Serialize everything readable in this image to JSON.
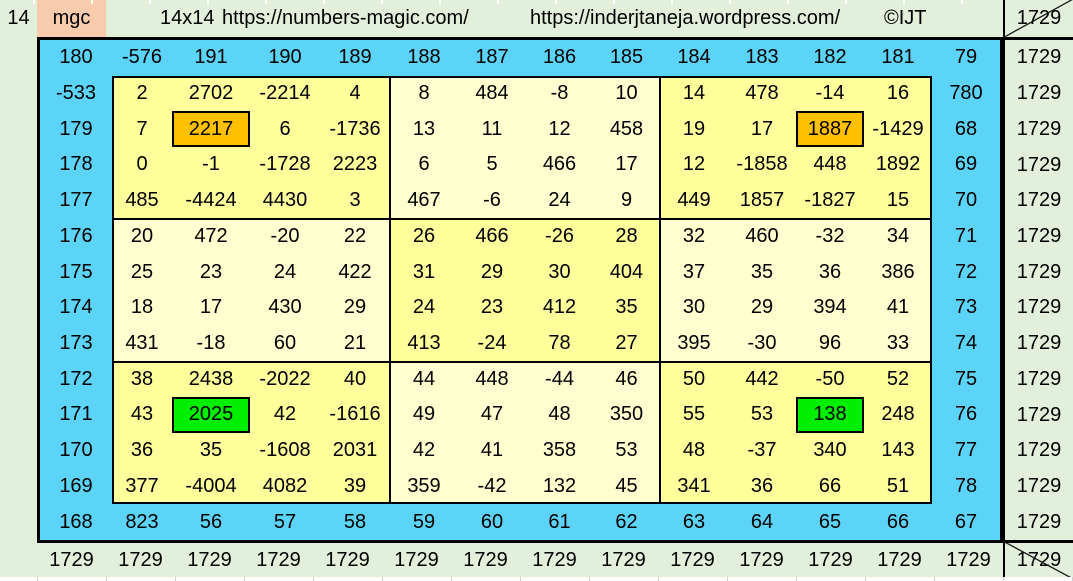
{
  "banner": {
    "order": "14",
    "tag": "mgc",
    "size_label": "14x14",
    "url_primary": "https://numbers-magic.com/",
    "url_secondary": "https://inderjtaneja.wordpress.com/",
    "copyright": "©IJT"
  },
  "diagonal_sums": {
    "anti": "1729",
    "main": "1729"
  },
  "row_sums": [
    "1729",
    "1729",
    "1729",
    "1729",
    "1729",
    "1729",
    "1729",
    "1729",
    "1729",
    "1729",
    "1729",
    "1729",
    "1729",
    "1729"
  ],
  "col_sums": [
    "1729",
    "1729",
    "1729",
    "1729",
    "1729",
    "1729",
    "1729",
    "1729",
    "1729",
    "1729",
    "1729",
    "1729",
    "1729",
    "1729"
  ],
  "grid": {
    "rows": [
      [
        180,
        -576,
        191,
        190,
        189,
        188,
        187,
        186,
        185,
        184,
        183,
        182,
        181,
        79
      ],
      [
        -533,
        2,
        2702,
        -2214,
        4,
        8,
        484,
        -8,
        10,
        14,
        478,
        -14,
        16,
        780
      ],
      [
        179,
        7,
        2217,
        6,
        -1736,
        13,
        11,
        12,
        458,
        19,
        17,
        1887,
        -1429,
        68
      ],
      [
        178,
        0,
        -1,
        -1728,
        2223,
        6,
        5,
        466,
        17,
        12,
        -1858,
        448,
        1892,
        69
      ],
      [
        177,
        485,
        -4424,
        4430,
        3,
        467,
        -6,
        24,
        9,
        449,
        1857,
        -1827,
        15,
        70
      ],
      [
        176,
        20,
        472,
        -20,
        22,
        26,
        466,
        -26,
        28,
        32,
        460,
        -32,
        34,
        71
      ],
      [
        175,
        25,
        23,
        24,
        422,
        31,
        29,
        30,
        404,
        37,
        35,
        36,
        386,
        72
      ],
      [
        174,
        18,
        17,
        430,
        29,
        24,
        23,
        412,
        35,
        30,
        29,
        394,
        41,
        73
      ],
      [
        173,
        431,
        -18,
        60,
        21,
        413,
        -24,
        78,
        27,
        395,
        -30,
        96,
        33,
        74
      ],
      [
        172,
        38,
        2438,
        -2022,
        40,
        44,
        448,
        -44,
        46,
        50,
        442,
        -50,
        52,
        75
      ],
      [
        171,
        43,
        2025,
        42,
        -1616,
        49,
        47,
        48,
        350,
        55,
        53,
        138,
        248,
        76
      ],
      [
        170,
        36,
        35,
        -1608,
        2031,
        42,
        41,
        358,
        53,
        48,
        -37,
        340,
        143,
        77
      ],
      [
        169,
        377,
        -4004,
        4082,
        39,
        359,
        -42,
        132,
        45,
        341,
        36,
        66,
        51,
        78
      ],
      [
        168,
        823,
        56,
        57,
        58,
        59,
        60,
        61,
        62,
        63,
        64,
        65,
        66,
        67
      ]
    ],
    "highlights": [
      {
        "row": 2,
        "col": 2,
        "color": "orange"
      },
      {
        "row": 2,
        "col": 11,
        "color": "orange"
      },
      {
        "row": 10,
        "col": 2,
        "color": "green"
      },
      {
        "row": 10,
        "col": 11,
        "color": "green"
      }
    ]
  },
  "colors": {
    "blue": "#5cd4f8",
    "yellow_bright": "#ffff9c",
    "yellow_pale": "#ffffd0",
    "green_bg": "#e2efda",
    "peach": "#f8cbad",
    "orange_highlight": "#ffc000",
    "green_highlight": "#00ef00"
  }
}
